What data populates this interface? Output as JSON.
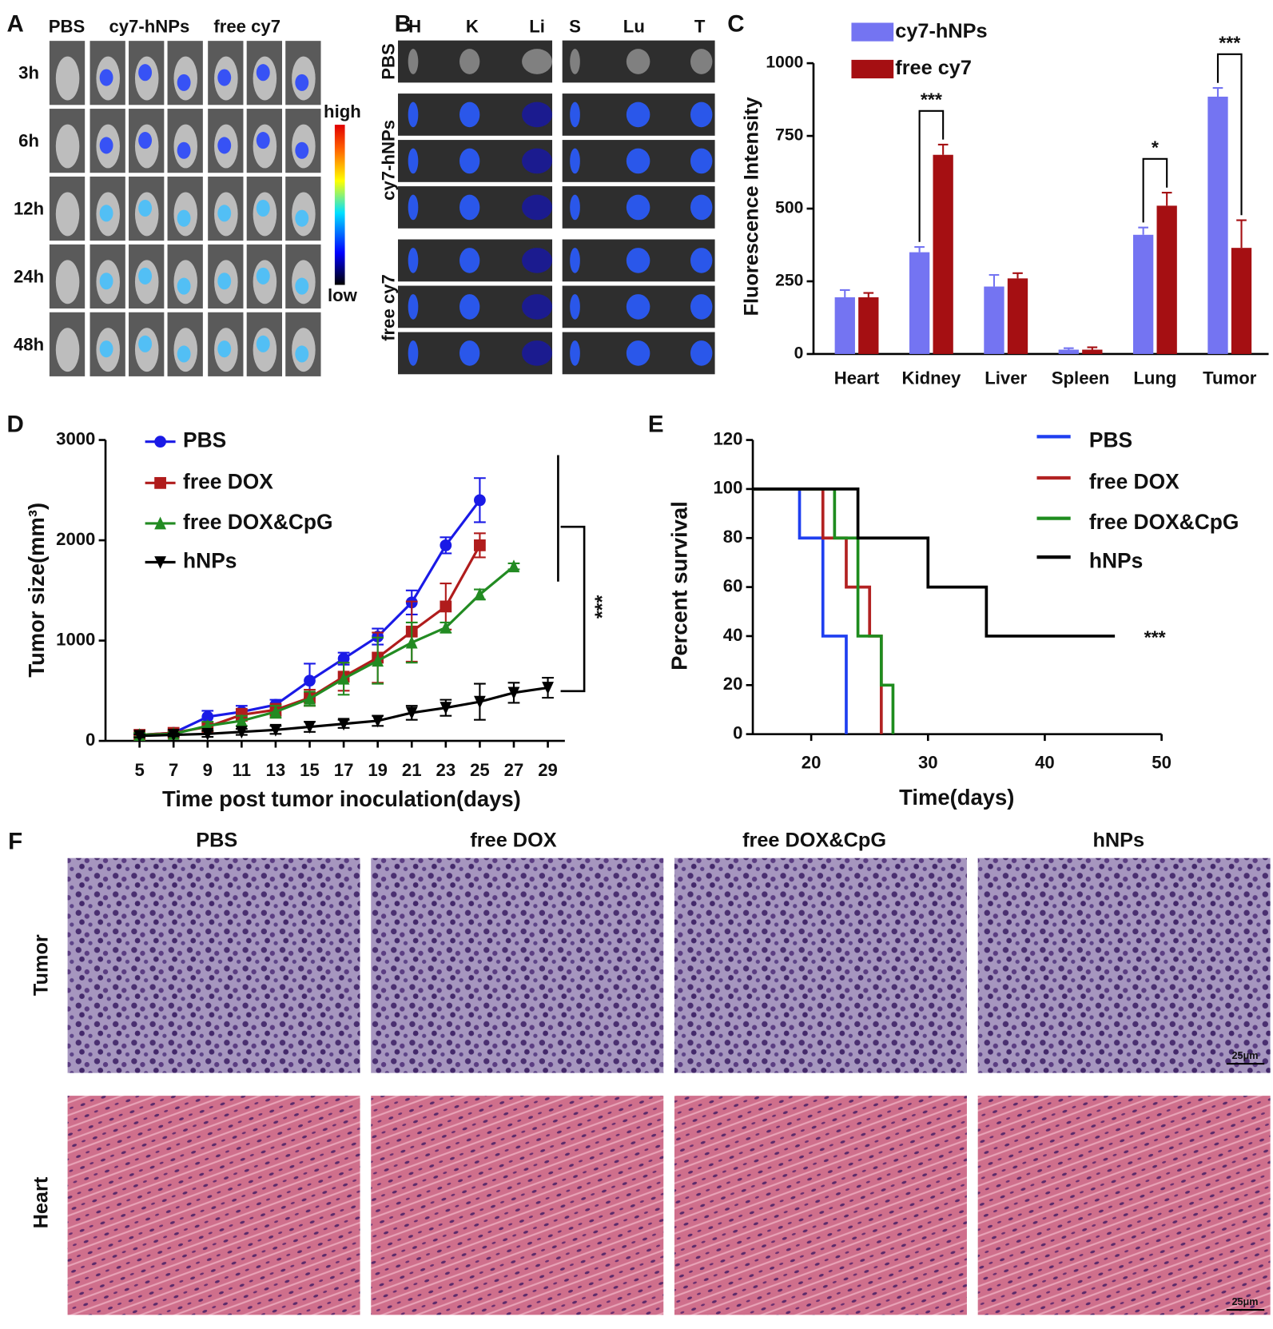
{
  "panel_labels": [
    "A",
    "B",
    "C",
    "D",
    "E",
    "F"
  ],
  "panel_a": {
    "columns": [
      "PBS",
      "cy7-hNPs",
      "free cy7"
    ],
    "rows": [
      "3h",
      "6h",
      "12h",
      "24h",
      "48h"
    ],
    "scale": [
      "high",
      "low"
    ]
  },
  "panel_b": {
    "columns": [
      "H",
      "K",
      "Li",
      "S",
      "Lu",
      "T"
    ],
    "rows": [
      "PBS",
      "cy7-hNPs",
      "free cy7"
    ]
  },
  "panel_f": {
    "columns": [
      "PBS",
      "free DOX",
      "free DOX&CpG",
      "hNPs"
    ],
    "rows": [
      "Tumor",
      "Heart"
    ],
    "scale_bar": "25μm"
  },
  "chart_data": [
    {
      "type": "bar",
      "y_label": "Fluorescence Intensity",
      "categories": [
        "Heart",
        "Kidney",
        "Liver",
        "Spleen",
        "Lung",
        "Tumor"
      ],
      "series": [
        {
          "name": "cy7-hNPs",
          "color": "#7474f2",
          "values": [
            195,
            350,
            232,
            15,
            410,
            885
          ],
          "errors": [
            25,
            18,
            40,
            5,
            25,
            30
          ]
        },
        {
          "name": "free cy7",
          "color": "#a50f12",
          "values": [
            195,
            685,
            260,
            15,
            510,
            365
          ],
          "errors": [
            15,
            35,
            18,
            8,
            45,
            95
          ]
        }
      ],
      "ylim": [
        0,
        1000
      ],
      "yticks": [
        0,
        250,
        500,
        750,
        1000
      ],
      "annotations": [
        {
          "between": "Kidney",
          "label": "***"
        },
        {
          "between": "Lung",
          "label": "*"
        },
        {
          "between": "Tumor",
          "label": "***"
        }
      ]
    },
    {
      "type": "line",
      "x_label": "Time post tumor inoculation(days)",
      "y_label": "Tumor size(mm³)",
      "x": [
        5,
        7,
        9,
        11,
        13,
        15,
        17,
        19,
        21,
        23,
        25,
        27,
        29
      ],
      "series": [
        {
          "name": "PBS",
          "color": "#1a1ae6",
          "marker": "circle",
          "values": [
            60,
            80,
            240,
            290,
            360,
            600,
            820,
            1040,
            1380,
            1950,
            2400,
            null,
            null
          ],
          "errors": [
            20,
            30,
            60,
            60,
            50,
            170,
            60,
            80,
            120,
            80,
            220,
            null,
            null
          ]
        },
        {
          "name": "free DOX",
          "color": "#b01c1c",
          "marker": "square",
          "values": [
            60,
            80,
            140,
            260,
            310,
            430,
            640,
            830,
            1090,
            1340,
            1950,
            null,
            null
          ],
          "errors": [
            20,
            20,
            40,
            60,
            60,
            80,
            140,
            250,
            300,
            230,
            120,
            null,
            null
          ]
        },
        {
          "name": "free DOX&CpG",
          "color": "#228b22",
          "marker": "triangle",
          "values": [
            60,
            70,
            150,
            200,
            290,
            420,
            620,
            800,
            980,
            1130,
            1460,
            1740,
            null
          ],
          "errors": [
            20,
            20,
            40,
            50,
            60,
            70,
            160,
            230,
            200,
            50,
            50,
            30,
            null
          ]
        },
        {
          "name": "hNPs",
          "color": "#000000",
          "marker": "triangle-down",
          "values": [
            50,
            60,
            70,
            90,
            110,
            140,
            170,
            200,
            280,
            330,
            390,
            480,
            530
          ],
          "errors": [
            15,
            15,
            30,
            30,
            40,
            50,
            40,
            50,
            70,
            80,
            180,
            100,
            100
          ]
        }
      ],
      "xlim": [
        3,
        30
      ],
      "xticks": [
        5,
        7,
        9,
        11,
        13,
        15,
        17,
        19,
        21,
        23,
        25,
        27,
        29
      ],
      "ylim": [
        0,
        3000
      ],
      "yticks": [
        0,
        1000,
        2000,
        3000
      ],
      "annotations": [
        "***"
      ]
    },
    {
      "type": "step",
      "x_label": "Time(days)",
      "y_label": "Percent survival",
      "series": [
        {
          "name": "PBS",
          "color": "#1f3ff0",
          "x": [
            15,
            19,
            21,
            23
          ],
          "values": [
            100,
            80,
            40,
            0
          ]
        },
        {
          "name": "free DOX",
          "color": "#b22222",
          "x": [
            15,
            21,
            23,
            25,
            26
          ],
          "values": [
            100,
            80,
            60,
            40,
            0
          ]
        },
        {
          "name": "free DOX&CpG",
          "color": "#1e8c1e",
          "x": [
            15,
            22,
            24,
            26,
            27
          ],
          "values": [
            100,
            80,
            40,
            20,
            0
          ]
        },
        {
          "name": "hNPs",
          "color": "#000000",
          "x": [
            15,
            24,
            30,
            35,
            46
          ],
          "values": [
            100,
            80,
            60,
            40,
            40
          ]
        }
      ],
      "xlim": [
        15,
        50
      ],
      "xticks": [
        20,
        30,
        40,
        50
      ],
      "ylim": [
        0,
        120
      ],
      "yticks": [
        0,
        20,
        40,
        60,
        80,
        100,
        120
      ],
      "annotations": [
        "***"
      ]
    }
  ]
}
